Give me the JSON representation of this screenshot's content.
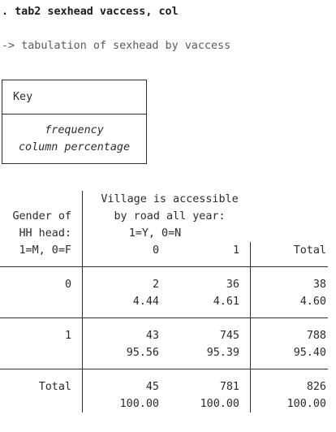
{
  "command": ". tab2 sexhead vaccess, col",
  "subtitle": "-> tabulation of sexhead by vaccess",
  "key": {
    "title": "Key",
    "line1": "frequency",
    "line2": "column percentage"
  },
  "row_header": [
    "Gender of",
    "HH head:",
    "1=M, 0=F"
  ],
  "col_header": [
    "Village is accessible",
    "by road all year:",
    "1=Y, 0=N"
  ],
  "columns": [
    "0",
    "1",
    "Total"
  ],
  "rows": [
    {
      "label": "0",
      "freq": [
        "2",
        "36",
        "38"
      ],
      "pct": [
        "4.44",
        "4.61",
        "4.60"
      ]
    },
    {
      "label": "1",
      "freq": [
        "43",
        "745",
        "788"
      ],
      "pct": [
        "95.56",
        "95.39",
        "95.40"
      ]
    },
    {
      "label": "Total",
      "freq": [
        "45",
        "781",
        "826"
      ],
      "pct": [
        "100.00",
        "100.00",
        "100.00"
      ]
    }
  ]
}
